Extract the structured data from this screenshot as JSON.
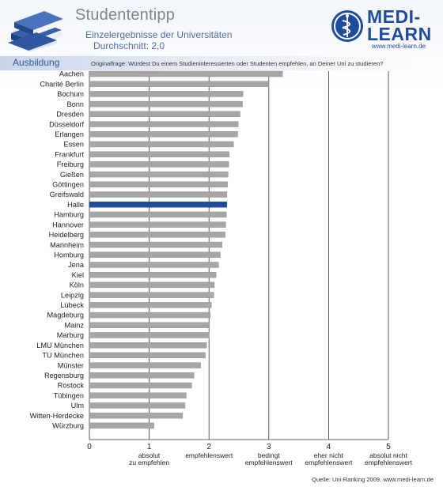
{
  "header": {
    "title": "Studententipp",
    "subtitle": "Einzelergebnisse der Universitäten",
    "average_label": "Durchschnitt:",
    "average_value": "2,0",
    "section": "Ausbildung",
    "question": "Originalfrage: Würdest Du einem Studieninteressierten oder Studenten empfehlen, an Deiner Uni zu studieren?"
  },
  "logo": {
    "line1": "MEDI-",
    "line2": "LEARN",
    "url": "www.medi-learn.de"
  },
  "source": "Quelle: Uni-Ranking 2009, www.medi-learn.de",
  "colors": {
    "bar_gray": "#a6a6a6",
    "bar_highlight": "#1f4d9b",
    "brand_blue": "#1f4d9b",
    "gridline": "#333333"
  },
  "chart_data": {
    "type": "bar",
    "orientation": "horizontal",
    "highlight": "Halle",
    "xlim": [
      0,
      5
    ],
    "x_ticks": [
      {
        "value": 0,
        "label": "0",
        "sub": ""
      },
      {
        "value": 1,
        "label": "1",
        "sub": "absolut\nzu empfehlen"
      },
      {
        "value": 2,
        "label": "2",
        "sub": "empfehlenswert"
      },
      {
        "value": 3,
        "label": "3",
        "sub": "bedingt\nempfehlenswert"
      },
      {
        "value": 4,
        "label": "4",
        "sub": "eher nicht\nempfehlenswert"
      },
      {
        "value": 5,
        "label": "5",
        "sub": "absolut nicht\nempfehlenswert"
      }
    ],
    "grid": "vertical",
    "categories": [
      "Aachen",
      "Charité Berlin",
      "Bochum",
      "Bonn",
      "Dresden",
      "Düsseldorf",
      "Erlangen",
      "Essen",
      "Frankfurt",
      "Freiburg",
      "Gießen",
      "Göttingen",
      "Greifswald",
      "Halle",
      "Hamburg",
      "Hannover",
      "Heidelberg",
      "Mannheim",
      "Homburg",
      "Jena",
      "Kiel",
      "Köln",
      "Leipzig",
      "Lübeck",
      "Magdeburg",
      "Mainz",
      "Marburg",
      "LMU München",
      "TU München",
      "Münster",
      "Regensburg",
      "Rostock",
      "Tübingen",
      "Ulm",
      "Witten-Herdecke",
      "Würzburg"
    ],
    "values": [
      3.23,
      3.0,
      2.57,
      2.56,
      2.52,
      2.49,
      2.48,
      2.41,
      2.34,
      2.33,
      2.32,
      2.31,
      2.3,
      2.3,
      2.29,
      2.28,
      2.27,
      2.22,
      2.19,
      2.16,
      2.12,
      2.09,
      2.08,
      2.04,
      2.02,
      2.01,
      2.0,
      1.96,
      1.94,
      1.86,
      1.75,
      1.71,
      1.62,
      1.6,
      1.56,
      1.08
    ]
  }
}
